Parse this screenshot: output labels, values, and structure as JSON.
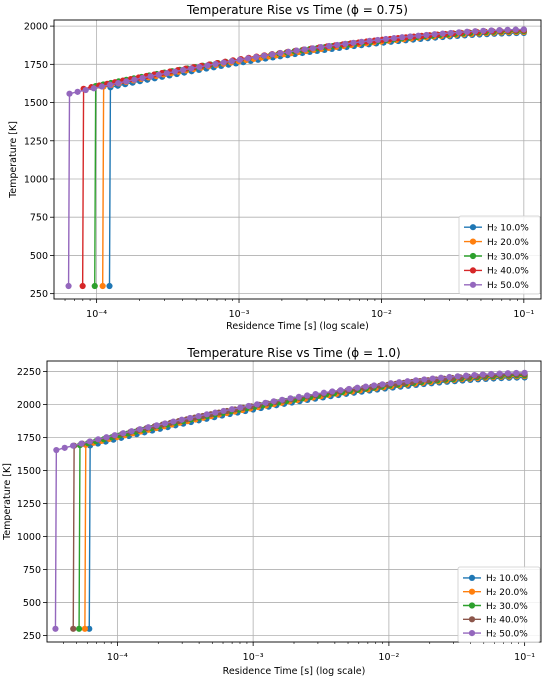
{
  "chart_data": [
    {
      "type": "line",
      "title": "Temperature Rise vs Time (ϕ = 0.75)",
      "xlabel": "Residence Time [s] (log scale)",
      "ylabel": "Temperature [K]",
      "xscale": "log",
      "xlim": [
        5.02e-05,
        0.000132
      ],
      "ylim": [
        215,
        2040
      ],
      "y_ticks": [
        250,
        500,
        750,
        1000,
        1250,
        1500,
        1750,
        2000
      ],
      "x_ticks": [
        {
          "value": 0.0001,
          "label": "10⁻⁴"
        },
        {
          "value": 0.001,
          "label": "10⁻³"
        },
        {
          "value": 0.01,
          "label": "10⁻²"
        },
        {
          "value": 0.1,
          "label": "10⁻¹"
        }
      ],
      "grid": true,
      "legend_position": "lower-right",
      "series": [
        {
          "name": "H₂ 10.0%",
          "color": "#1f77b4",
          "ignition_time": 0.000125,
          "start_temp": 300,
          "jump_temp": 1600,
          "end_temp": 1955
        },
        {
          "name": "H₂ 20.0%",
          "color": "#ff7f0e",
          "ignition_time": 0.000112,
          "start_temp": 300,
          "jump_temp": 1605,
          "end_temp": 1962
        },
        {
          "name": "H₂ 30.0%",
          "color": "#2ca02c",
          "ignition_time": 9.85e-05,
          "start_temp": 300,
          "jump_temp": 1608,
          "end_temp": 1968
        },
        {
          "name": "H₂ 40.0%",
          "color": "#d62728",
          "ignition_time": 8.1e-05,
          "start_temp": 300,
          "jump_temp": 1590,
          "end_temp": 1973
        },
        {
          "name": "H₂ 50.0%",
          "color": "#9467bd",
          "ignition_time": 6.45e-05,
          "start_temp": 300,
          "jump_temp": 1558,
          "end_temp": 1978
        }
      ]
    },
    {
      "type": "line",
      "title": "Temperature Rise vs Time (ϕ = 1.0)",
      "xlabel": "Residence Time [s] (log scale)",
      "ylabel": "Temperature [K]",
      "xscale": "log",
      "xlim": [
        3.03e-05,
        0.000132
      ],
      "ylim": [
        200,
        2330
      ],
      "y_ticks": [
        250,
        500,
        750,
        1000,
        1250,
        1500,
        1750,
        2000,
        2250
      ],
      "x_ticks": [
        {
          "value": 0.0001,
          "label": "10⁻⁴"
        },
        {
          "value": 0.001,
          "label": "10⁻³"
        },
        {
          "value": 0.01,
          "label": "10⁻²"
        },
        {
          "value": 0.1,
          "label": "10⁻¹"
        }
      ],
      "grid": true,
      "legend_position": "lower-right",
      "series": [
        {
          "name": "H₂ 10.0%",
          "color": "#1f77b4",
          "ignition_time": 6.3e-05,
          "start_temp": 300,
          "jump_temp": 1690,
          "end_temp": 2205
        },
        {
          "name": "H₂ 20.0%",
          "color": "#ff7f0e",
          "ignition_time": 5.85e-05,
          "start_temp": 300,
          "jump_temp": 1695,
          "end_temp": 2215
        },
        {
          "name": "H₂ 30.0%",
          "color": "#2ca02c",
          "ignition_time": 5.3e-05,
          "start_temp": 300,
          "jump_temp": 1692,
          "end_temp": 2222
        },
        {
          "name": "H₂ 40.0%",
          "color": "#8c564b",
          "ignition_time": 4.8e-05,
          "start_temp": 300,
          "jump_temp": 1688,
          "end_temp": 2230
        },
        {
          "name": "H₂ 50.0%",
          "color": "#9467bd",
          "ignition_time": 3.55e-05,
          "start_temp": 300,
          "jump_temp": 1655,
          "end_temp": 2240
        }
      ]
    }
  ]
}
